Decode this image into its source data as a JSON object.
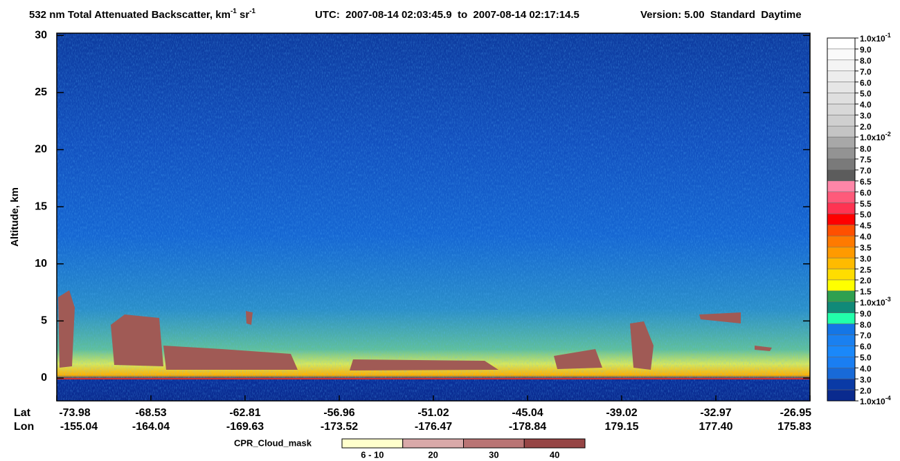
{
  "chart_data": {
    "type": "heatmap",
    "title_parts": [
      "532 nm Total Attenuated Backscatter, km",
      "-1",
      " sr",
      "-1"
    ],
    "time_range": "UTC:  2007-08-14 02:03:45.9  to  2007-08-14 02:17:14.5",
    "version": "Version: 5.00  Standard  Daytime",
    "ylabel": "Altitude, km",
    "ylim": [
      -2,
      30.2
    ],
    "yticks": [
      0,
      5,
      10,
      15,
      20,
      25,
      30
    ],
    "x_row_labels": [
      "Lat",
      "Lon"
    ],
    "lat": [
      "-73.98",
      "-68.53",
      "-62.81",
      "-56.96",
      "-51.02",
      "-45.04",
      "-39.02",
      "-32.97",
      "-26.95"
    ],
    "lon": [
      "-155.04",
      "-164.04",
      "-169.63",
      "-173.52",
      "-176.47",
      "-178.84",
      "179.15",
      "177.40",
      "175.83"
    ],
    "colorbar_labels": [
      {
        "text": "1.0x10",
        "sup": "-1"
      },
      "9.0",
      "8.0",
      "7.0",
      "6.0",
      "5.0",
      "4.0",
      "3.0",
      "2.0",
      {
        "text": "1.0x10",
        "sup": "-2"
      },
      "8.0",
      "7.5",
      "7.0",
      "6.5",
      "6.0",
      "5.5",
      "5.0",
      "4.5",
      "4.0",
      "3.5",
      "3.0",
      "2.5",
      "2.0",
      "1.5",
      {
        "text": "1.0x10",
        "sup": "-3"
      },
      "9.0",
      "8.0",
      "7.0",
      "6.0",
      "5.0",
      "4.0",
      "3.0",
      "2.0",
      {
        "text": "1.0x10",
        "sup": "-4"
      }
    ],
    "colorbar_colors": [
      "#ffffff",
      "#fafafa",
      "#f4f4f4",
      "#ededed",
      "#e6e6e6",
      "#dfdfdf",
      "#d8d8d8",
      "#cfcfcf",
      "#c4c4c4",
      "#a8a8a8",
      "#939393",
      "#7a7a7a",
      "#5c5c5c",
      "#ff86a8",
      "#ff5a7a",
      "#ff3452",
      "#ff0000",
      "#ff5000",
      "#ff7a00",
      "#ff9a00",
      "#ffbb00",
      "#ffdd00",
      "#ffff00",
      "#2fa050",
      "#108a78",
      "#22ffaa",
      "#1476e6",
      "#1a80f0",
      "#1a88fa",
      "#1a7ef2",
      "#186ad8",
      "#0a3aa6",
      "#0a2a8e"
    ],
    "cpr_title": "CPR_Cloud_mask",
    "cpr_labels": [
      "6 - 10",
      "20",
      "30",
      "40"
    ],
    "cpr_colors": [
      "#ffffcc",
      "#d9a9a9",
      "#b97474",
      "#964545"
    ]
  }
}
